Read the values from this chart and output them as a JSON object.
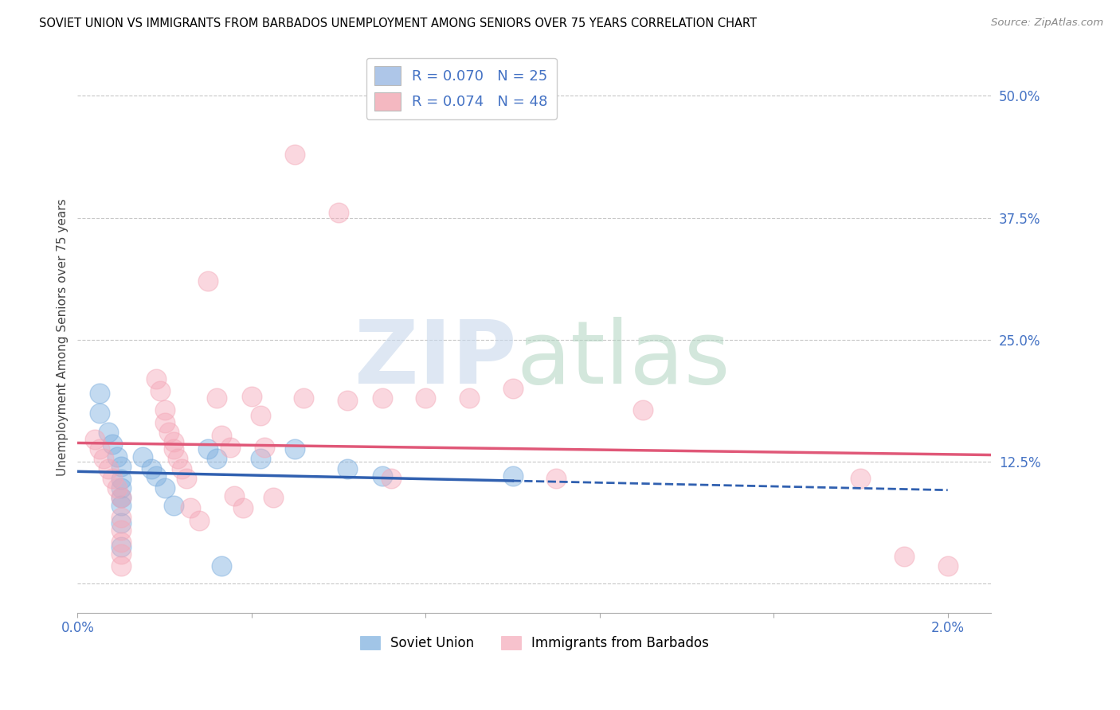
{
  "title": "SOVIET UNION VS IMMIGRANTS FROM BARBADOS UNEMPLOYMENT AMONG SENIORS OVER 75 YEARS CORRELATION CHART",
  "source": "Source: ZipAtlas.com",
  "ylabel": "Unemployment Among Seniors over 75 years",
  "xmin": 0.0,
  "xmax": 0.021,
  "ymin": -0.03,
  "ymax": 0.535,
  "yticks": [
    0.0,
    0.125,
    0.25,
    0.375,
    0.5
  ],
  "ytick_labels": [
    "",
    "12.5%",
    "25.0%",
    "37.5%",
    "50.0%"
  ],
  "xticks": [
    0.0,
    0.004,
    0.008,
    0.012,
    0.016,
    0.02
  ],
  "xtick_labels": [
    "0.0%",
    "",
    "",
    "",
    "",
    "2.0%"
  ],
  "legend_entries": [
    {
      "label": "R = 0.070   N = 25",
      "color": "#aec6e8"
    },
    {
      "label": "R = 0.074   N = 48",
      "color": "#f4b8c1"
    }
  ],
  "soviet_union_color": "#7aadde",
  "barbados_color": "#f4a8b8",
  "soviet_union_line_color": "#3060b0",
  "barbados_line_color": "#e05878",
  "soviet_r": 0.07,
  "soviet_n": 25,
  "barbados_r": 0.074,
  "barbados_n": 48,
  "background_color": "#ffffff",
  "grid_color": "#c8c8c8",
  "soviet_union_scatter": [
    [
      0.0005,
      0.195
    ],
    [
      0.0005,
      0.175
    ],
    [
      0.0007,
      0.155
    ],
    [
      0.0008,
      0.143
    ],
    [
      0.0009,
      0.13
    ],
    [
      0.001,
      0.12
    ],
    [
      0.001,
      0.107
    ],
    [
      0.001,
      0.098
    ],
    [
      0.001,
      0.088
    ],
    [
      0.001,
      0.08
    ],
    [
      0.001,
      0.062
    ],
    [
      0.001,
      0.038
    ],
    [
      0.0015,
      0.13
    ],
    [
      0.0017,
      0.118
    ],
    [
      0.0018,
      0.11
    ],
    [
      0.002,
      0.098
    ],
    [
      0.0022,
      0.08
    ],
    [
      0.003,
      0.138
    ],
    [
      0.0032,
      0.128
    ],
    [
      0.0033,
      0.018
    ],
    [
      0.0042,
      0.128
    ],
    [
      0.005,
      0.138
    ],
    [
      0.0062,
      0.118
    ],
    [
      0.007,
      0.11
    ],
    [
      0.01,
      0.11
    ]
  ],
  "barbados_scatter": [
    [
      0.0004,
      0.148
    ],
    [
      0.0005,
      0.138
    ],
    [
      0.0006,
      0.128
    ],
    [
      0.0007,
      0.118
    ],
    [
      0.0008,
      0.108
    ],
    [
      0.0009,
      0.098
    ],
    [
      0.001,
      0.088
    ],
    [
      0.001,
      0.068
    ],
    [
      0.001,
      0.055
    ],
    [
      0.001,
      0.043
    ],
    [
      0.001,
      0.03
    ],
    [
      0.001,
      0.018
    ],
    [
      0.0018,
      0.21
    ],
    [
      0.0019,
      0.198
    ],
    [
      0.002,
      0.178
    ],
    [
      0.002,
      0.165
    ],
    [
      0.0021,
      0.155
    ],
    [
      0.0022,
      0.145
    ],
    [
      0.0022,
      0.138
    ],
    [
      0.0023,
      0.128
    ],
    [
      0.0024,
      0.118
    ],
    [
      0.0025,
      0.108
    ],
    [
      0.0026,
      0.078
    ],
    [
      0.0028,
      0.065
    ],
    [
      0.003,
      0.31
    ],
    [
      0.0032,
      0.19
    ],
    [
      0.0033,
      0.152
    ],
    [
      0.0035,
      0.14
    ],
    [
      0.0036,
      0.09
    ],
    [
      0.0038,
      0.078
    ],
    [
      0.004,
      0.192
    ],
    [
      0.0042,
      0.172
    ],
    [
      0.0043,
      0.14
    ],
    [
      0.0045,
      0.088
    ],
    [
      0.005,
      0.44
    ],
    [
      0.0052,
      0.19
    ],
    [
      0.006,
      0.38
    ],
    [
      0.0062,
      0.188
    ],
    [
      0.007,
      0.19
    ],
    [
      0.0072,
      0.108
    ],
    [
      0.008,
      0.19
    ],
    [
      0.009,
      0.19
    ],
    [
      0.01,
      0.2
    ],
    [
      0.011,
      0.108
    ],
    [
      0.013,
      0.178
    ],
    [
      0.018,
      0.108
    ],
    [
      0.019,
      0.028
    ],
    [
      0.02,
      0.018
    ]
  ],
  "soviet_line_solid_end": 0.01,
  "soviet_line_dash_start": 0.01,
  "soviet_line_dash_end": 0.02
}
